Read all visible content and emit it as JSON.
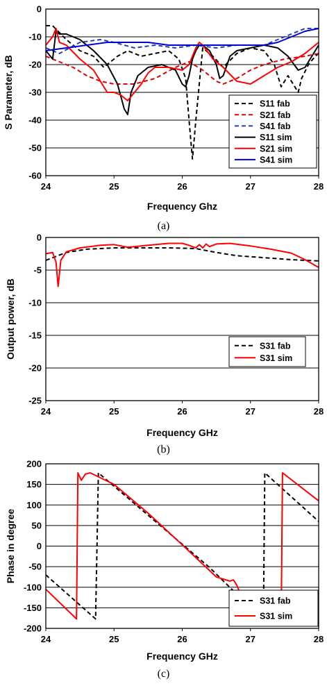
{
  "chart_data": [
    {
      "type": "line",
      "caption": "(a)",
      "xlabel": "Frequency Ghz",
      "ylabel": "S Parameter, dB",
      "xlim": [
        24,
        28
      ],
      "ylim": [
        -60,
        0
      ],
      "xticks": [
        24,
        25,
        26,
        27,
        28
      ],
      "yticks": [
        0,
        -10,
        -20,
        -30,
        -40,
        -50,
        -60
      ],
      "grid": "horizontal",
      "legend_position": "bottom-right",
      "series": [
        {
          "name": "S11 fab",
          "color": "#000000",
          "dash": "dashed",
          "x": [
            24,
            24.1,
            24.3,
            24.5,
            24.7,
            24.85,
            24.95,
            25.05,
            25.2,
            25.4,
            25.6,
            25.8,
            25.95,
            26.05,
            26.1,
            26.15,
            26.2,
            26.3,
            26.45,
            26.6,
            26.8,
            27.0,
            27.2,
            27.35,
            27.45,
            27.55,
            27.65,
            27.7,
            27.75,
            27.85,
            27.95,
            28
          ],
          "y": [
            -6,
            -6,
            -11,
            -15,
            -17,
            -21,
            -19,
            -17,
            -15,
            -17,
            -16,
            -15,
            -18,
            -25,
            -40,
            -54,
            -40,
            -14,
            -17,
            -21,
            -16,
            -14,
            -15,
            -20,
            -28,
            -24,
            -28,
            -30,
            -25,
            -20,
            -17,
            -16
          ]
        },
        {
          "name": "S21 fab",
          "color": "#e00000",
          "dash": "dashed",
          "x": [
            24,
            24.2,
            24.4,
            24.6,
            24.8,
            25.0,
            25.3,
            25.6,
            25.9,
            26.1,
            26.3,
            26.5,
            26.6,
            26.8,
            27.0,
            27.2,
            27.5,
            27.8,
            28
          ],
          "y": [
            -17,
            -19,
            -21,
            -24,
            -26,
            -27,
            -27,
            -25,
            -21,
            -19,
            -22,
            -26,
            -27,
            -25,
            -22,
            -20,
            -18,
            -17,
            -16
          ]
        },
        {
          "name": "S41 fab",
          "color": "#1f3ec8",
          "dash": "dashed",
          "x": [
            24,
            24.2,
            24.5,
            24.8,
            25.0,
            25.3,
            25.6,
            25.9,
            26.2,
            26.5,
            26.8,
            27.0,
            27.2,
            27.4,
            27.6,
            27.8,
            28
          ],
          "y": [
            -14,
            -16,
            -12,
            -11,
            -12,
            -14,
            -13,
            -14,
            -13,
            -14,
            -13,
            -13,
            -13,
            -11,
            -9,
            -7,
            -7
          ]
        },
        {
          "name": "S11 sim",
          "color": "#000000",
          "dash": "solid",
          "x": [
            24,
            24.1,
            24.15,
            24.2,
            24.3,
            24.5,
            24.7,
            24.9,
            25.05,
            25.15,
            25.2,
            25.25,
            25.35,
            25.5,
            25.7,
            25.9,
            26.0,
            26.05,
            26.1,
            26.15,
            26.2,
            26.25,
            26.3,
            26.4,
            26.5,
            26.55,
            26.6,
            26.7,
            26.8,
            27.0,
            27.2,
            27.4,
            27.55,
            27.7,
            27.8,
            27.9,
            28
          ],
          "y": [
            -15,
            -18,
            -8,
            -9,
            -9,
            -11,
            -15,
            -20,
            -27,
            -36,
            -38,
            -30,
            -24,
            -21,
            -20,
            -22,
            -27,
            -28,
            -24,
            -18,
            -15,
            -13,
            -13,
            -15,
            -20,
            -25,
            -24,
            -17,
            -15,
            -14,
            -13,
            -14,
            -17,
            -22,
            -21,
            -17,
            -13
          ]
        },
        {
          "name": "S21 sim",
          "color": "#ff0000",
          "dash": "solid",
          "x": [
            24,
            24.1,
            24.15,
            24.2,
            24.3,
            24.5,
            24.7,
            24.8,
            24.9,
            25.0,
            25.1,
            25.2,
            25.3,
            25.4,
            25.5,
            25.6,
            25.8,
            26.0,
            26.1,
            26.2,
            26.25,
            26.3,
            26.45,
            26.6,
            26.8,
            27.0,
            27.2,
            27.4,
            27.6,
            27.8,
            28
          ],
          "y": [
            -13,
            -10,
            -7,
            -12,
            -13,
            -18,
            -22,
            -26,
            -30,
            -30,
            -31,
            -33,
            -30,
            -27,
            -23,
            -21,
            -21,
            -22,
            -20,
            -14,
            -12,
            -13,
            -18,
            -21,
            -26,
            -27,
            -24,
            -21,
            -19,
            -16,
            -12
          ]
        },
        {
          "name": "S41 sim",
          "color": "#0000d0",
          "dash": "solid",
          "x": [
            24,
            24.3,
            24.6,
            24.9,
            25.2,
            25.5,
            25.8,
            26.0,
            26.3,
            26.6,
            26.9,
            27.0,
            27.2,
            27.4,
            27.6,
            27.8,
            28
          ],
          "y": [
            -15,
            -14,
            -13,
            -12,
            -12,
            -12,
            -13,
            -13,
            -13,
            -13,
            -13,
            -13,
            -13,
            -12,
            -10,
            -8,
            -7
          ]
        }
      ]
    },
    {
      "type": "line",
      "caption": "(b)",
      "xlabel": "Frequency GHz",
      "ylabel": "Output power, dB",
      "xlim": [
        24,
        28
      ],
      "ylim": [
        -25,
        0
      ],
      "xticks": [
        24,
        25,
        26,
        27,
        28
      ],
      "yticks": [
        0,
        -5,
        -10,
        -15,
        -20,
        -25
      ],
      "grid": "horizontal",
      "legend_position": "bottom-right",
      "series": [
        {
          "name": "S31 fab",
          "color": "#000000",
          "dash": "dashed",
          "x": [
            24,
            24.3,
            24.6,
            25.0,
            25.4,
            25.8,
            26.2,
            26.5,
            26.8,
            27.2,
            27.6,
            28
          ],
          "y": [
            -3.5,
            -2.3,
            -1.8,
            -1.6,
            -1.6,
            -1.6,
            -1.7,
            -2.3,
            -2.8,
            -3.1,
            -3.4,
            -3.6
          ]
        },
        {
          "name": "S31 sim",
          "color": "#ff0000",
          "dash": "solid",
          "x": [
            24,
            24.1,
            24.15,
            24.18,
            24.22,
            24.3,
            24.5,
            24.8,
            25.0,
            25.2,
            25.5,
            25.8,
            26.0,
            26.1,
            26.2,
            26.25,
            26.3,
            26.35,
            26.4,
            26.5,
            26.7,
            27.0,
            27.3,
            27.6,
            27.8,
            28
          ],
          "y": [
            -2.5,
            -2.3,
            -3.8,
            -7.5,
            -3.5,
            -2.2,
            -1.6,
            -1.2,
            -1.1,
            -1.5,
            -1.2,
            -0.9,
            -0.9,
            -1.2,
            -1.6,
            -1.1,
            -1.6,
            -1.0,
            -1.4,
            -1.0,
            -0.9,
            -1.3,
            -1.8,
            -2.4,
            -3.4,
            -4.6
          ]
        }
      ]
    },
    {
      "type": "line",
      "caption": "(c)",
      "xlabel": "Frequency GHz",
      "ylabel": "Phase in degree",
      "xlim": [
        24,
        28
      ],
      "ylim": [
        -200,
        200
      ],
      "xticks": [
        24,
        25,
        26,
        27,
        28
      ],
      "yticks": [
        200,
        150,
        100,
        50,
        0,
        -50,
        -100,
        -150,
        -200
      ],
      "grid": "horizontal",
      "legend_position": "bottom-right",
      "series": [
        {
          "name": "S31 fab",
          "color": "#000000",
          "dash": "dashed",
          "x": [
            24,
            24.73,
            24.77,
            26.4,
            27.19,
            27.21,
            28
          ],
          "y": [
            -70,
            -177,
            178,
            -52,
            -180,
            178,
            60
          ]
        },
        {
          "name": "S31 sim",
          "color": "#ff0000",
          "dash": "solid",
          "x": [
            24,
            24.45,
            24.47,
            24.52,
            24.58,
            24.65,
            25.0,
            25.5,
            26.0,
            26.5,
            26.7,
            26.75,
            26.8,
            27.0,
            27.45,
            27.47,
            28
          ],
          "y": [
            -105,
            -177,
            178,
            160,
            175,
            178,
            150,
            80,
            3,
            -75,
            -85,
            -82,
            -95,
            -180,
            -180,
            178,
            110
          ]
        }
      ]
    }
  ]
}
